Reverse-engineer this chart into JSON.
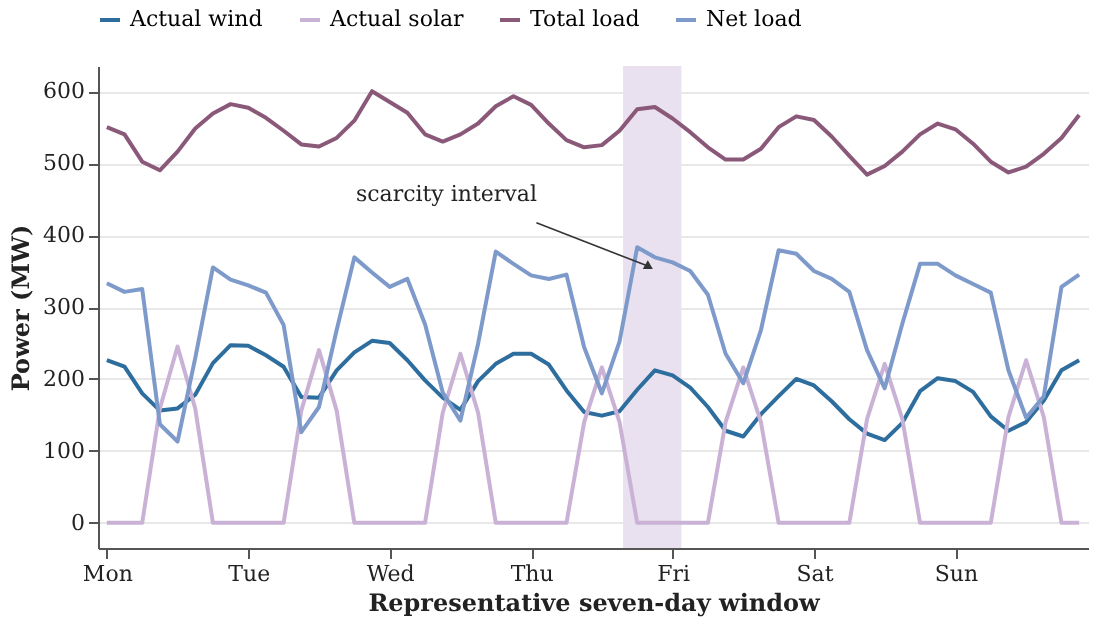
{
  "chart_data": {
    "type": "line",
    "xlabel": "Representative seven-day window",
    "ylabel": "Power (MW)",
    "categories": [
      "Mon",
      null,
      null,
      null,
      null,
      null,
      null,
      null,
      "Tue",
      null,
      null,
      null,
      null,
      null,
      null,
      null,
      "Wed",
      null,
      null,
      null,
      null,
      null,
      null,
      null,
      "Thu",
      null,
      null,
      null,
      null,
      null,
      null,
      null,
      "Fri",
      null,
      null,
      null,
      null,
      null,
      null,
      null,
      "Sat",
      null,
      null,
      null,
      null,
      null,
      null,
      null,
      "Sun",
      null,
      null,
      null,
      null,
      null,
      null,
      null
    ],
    "ylim": [
      -35,
      635
    ],
    "yticks": [
      0,
      100,
      200,
      300,
      400,
      500,
      600
    ],
    "grid": "y",
    "legend": "top",
    "line_style": "solid",
    "marker": "none",
    "annotations": [
      "scarcity interval"
    ],
    "series": [
      {
        "name": "Actual wind",
        "color": "#2e6e9e",
        "values": [
          226,
          217,
          180,
          156,
          159,
          178,
          222,
          247,
          246,
          233,
          217,
          175,
          174,
          212,
          237,
          253,
          250,
          226,
          198,
          174,
          157,
          197,
          221,
          235,
          235,
          220,
          184,
          154,
          149,
          155,
          185,
          212,
          205,
          188,
          161,
          128,
          120,
          151,
          176,
          200,
          191,
          169,
          144,
          124,
          115,
          139,
          183,
          201,
          197,
          182,
          148,
          128,
          140,
          170,
          212,
          226
        ]
      },
      {
        "name": "Actual solar",
        "color": "#c9b2d6",
        "values": [
          0,
          0,
          0,
          159,
          245,
          159,
          0,
          0,
          0,
          0,
          0,
          156,
          240,
          156,
          0,
          0,
          0,
          0,
          0,
          153,
          235,
          153,
          0,
          0,
          0,
          0,
          0,
          140,
          216,
          140,
          0,
          0,
          0,
          0,
          0,
          140,
          216,
          140,
          0,
          0,
          0,
          0,
          0,
          144,
          221,
          144,
          0,
          0,
          0,
          0,
          0,
          147,
          226,
          147,
          0,
          0
        ]
      },
      {
        "name": "Total load",
        "color": "#8a5878",
        "values": [
          550,
          540,
          502,
          490,
          516,
          548,
          569,
          582,
          577,
          563,
          545,
          526,
          523,
          535,
          559,
          600,
          585,
          570,
          540,
          530,
          540,
          555,
          579,
          593,
          581,
          555,
          532,
          522,
          525,
          545,
          575,
          578,
          562,
          543,
          522,
          505,
          505,
          520,
          550,
          565,
          560,
          537,
          510,
          484,
          496,
          516,
          540,
          555,
          547,
          527,
          502,
          487,
          495,
          513,
          535,
          567
        ]
      },
      {
        "name": "Net load",
        "color": "#7e9acb",
        "values": [
          333,
          321,
          325,
          137,
          113,
          229,
          355,
          338,
          330,
          320,
          275,
          126,
          161,
          268,
          369,
          348,
          328,
          339,
          276,
          181,
          142,
          249,
          377,
          360,
          344,
          339,
          345,
          244,
          180,
          252,
          383,
          369,
          362,
          350,
          317,
          235,
          194,
          268,
          379,
          374,
          350,
          339,
          321,
          240,
          187,
          277,
          360,
          360,
          344,
          332,
          320,
          212,
          146,
          176,
          328,
          345
        ]
      }
    ]
  }
}
